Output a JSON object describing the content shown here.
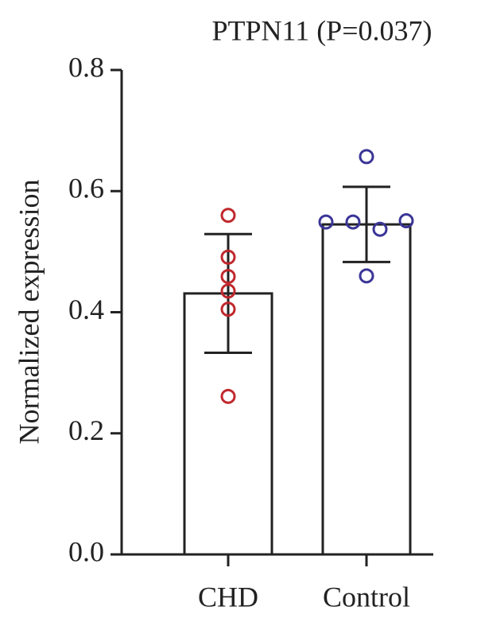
{
  "chart_data": {
    "type": "bar",
    "title": "PTPN11 (P=0.037)",
    "y_label": "Normalized expression",
    "categories": [
      "CHD",
      "Control"
    ],
    "values": [
      0.431,
      0.545
    ],
    "errors": [
      0.098,
      0.062
    ],
    "colors": [
      "#c0282d",
      "#3a3596"
    ],
    "points": [
      [
        0.56,
        0.491,
        0.459,
        0.435,
        0.405,
        0.261
      ],
      [
        0.657,
        0.549,
        0.549,
        0.537,
        0.551,
        0.46
      ]
    ],
    "ylim": [
      0,
      0.8
    ],
    "yticks": [
      {
        "value": 0,
        "label": "0.0"
      },
      0.2,
      0.4,
      0.6,
      0.8
    ],
    "grid": false
  }
}
